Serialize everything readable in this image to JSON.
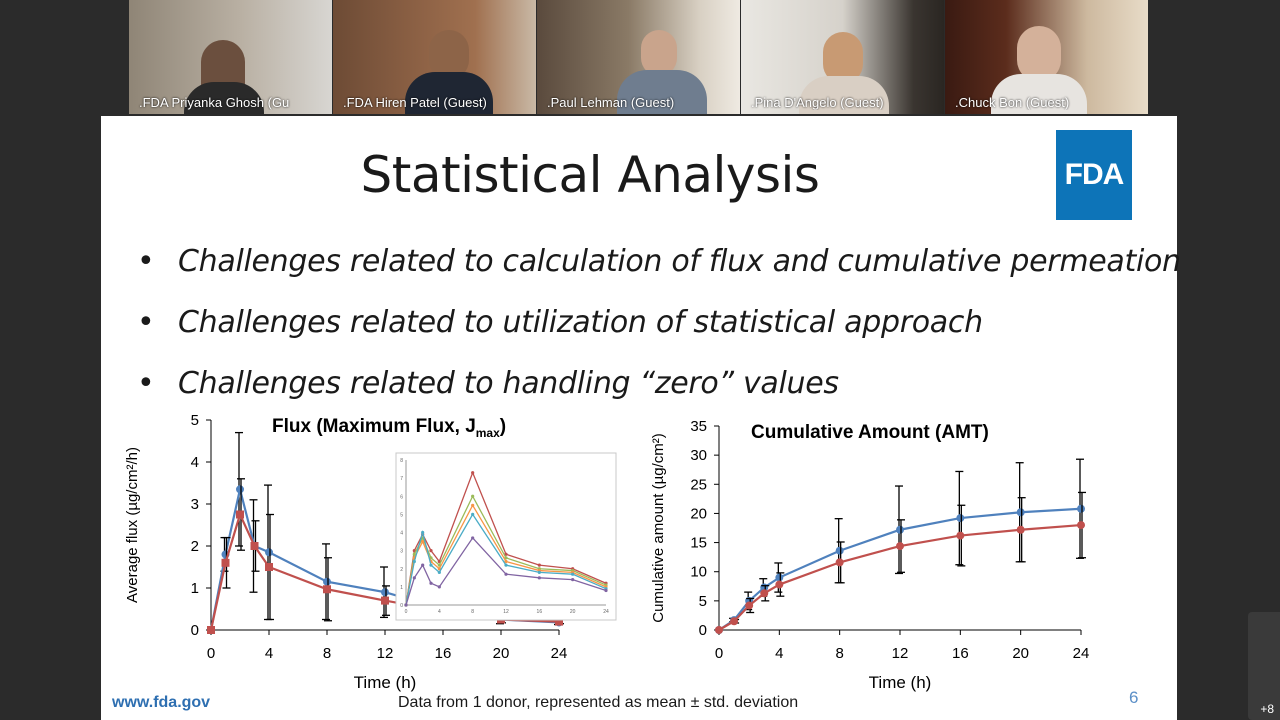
{
  "participants": [
    {
      "name": ".FDA Priyanka Ghosh (Gu"
    },
    {
      "name": ".FDA Hiren Patel (Guest)"
    },
    {
      "name": ".Paul Lehman (Guest)"
    },
    {
      "name": ".Pina D'Angelo (Guest)"
    },
    {
      "name": ".Chuck Bon (Guest)"
    }
  ],
  "more_participants": "+8",
  "slide": {
    "title": "Statistical Analysis",
    "logo_text": "FDA",
    "bullets": [
      "Challenges related to calculation of flux and cumulative permeation",
      "Challenges related to utilization of statistical approach",
      "Challenges related to handling “zero” values"
    ],
    "footer_url": "www.fda.gov",
    "footer_note": "Data from 1 donor, represented as mean ± std. deviation",
    "page_number": "6"
  },
  "colors": {
    "series_blue": "#4f81bd",
    "series_red": "#c0504d",
    "fda_blue": "#0d74b8"
  },
  "chart_data": [
    {
      "type": "line",
      "title": "Flux (Maximum Flux, J",
      "title_sub": "max",
      "title_close": ")",
      "xlabel": "Time (h)",
      "ylabel": "Average flux (µg/cm²/h)",
      "xlim": [
        0,
        24
      ],
      "ylim": [
        0,
        5
      ],
      "xticks": [
        0,
        4,
        8,
        12,
        16,
        20,
        24
      ],
      "yticks": [
        0,
        1,
        2,
        3,
        4,
        5
      ],
      "x": [
        0,
        1,
        2,
        3,
        4,
        8,
        12,
        16,
        20,
        24
      ],
      "series": [
        {
          "color": "#4f81bd",
          "marker": "circle",
          "values": [
            0,
            1.8,
            3.35,
            2.0,
            1.85,
            1.15,
            0.9,
            0.5,
            0.25,
            0.18
          ],
          "err": [
            0,
            0.4,
            1.35,
            1.1,
            1.6,
            0.9,
            0.6,
            0.25,
            0.1,
            0.05
          ]
        },
        {
          "color": "#c0504d",
          "marker": "square",
          "values": [
            0,
            1.6,
            2.75,
            2.0,
            1.5,
            0.97,
            0.7,
            0.45,
            0.25,
            0.2
          ],
          "err": [
            0,
            0.6,
            0.85,
            0.6,
            1.25,
            0.75,
            0.35,
            0.2,
            0.08,
            0.05
          ]
        }
      ],
      "inset": {
        "xticks": [
          0,
          4,
          8,
          12,
          16,
          20,
          24
        ],
        "yticks": [
          0,
          1,
          2,
          3,
          4,
          5,
          6,
          7,
          8
        ],
        "ylim": [
          0,
          8
        ],
        "x": [
          0,
          1,
          2,
          3,
          4,
          8,
          12,
          16,
          20,
          24
        ],
        "series": [
          {
            "color": "#c0504d",
            "values": [
              0,
              3.0,
              3.9,
              3.0,
              2.4,
              7.3,
              2.8,
              2.2,
              2.0,
              1.2
            ]
          },
          {
            "color": "#9bbb59",
            "values": [
              0,
              2.8,
              3.7,
              2.6,
              2.2,
              6.0,
              2.6,
              2.0,
              1.9,
              1.1
            ]
          },
          {
            "color": "#f79646",
            "values": [
              0,
              2.6,
              3.5,
              2.4,
              2.0,
              5.5,
              2.4,
              1.9,
              1.8,
              1.0
            ]
          },
          {
            "color": "#4bacc6",
            "values": [
              0,
              2.4,
              4.0,
              2.2,
              1.8,
              5.0,
              2.2,
              1.8,
              1.7,
              0.9
            ]
          },
          {
            "color": "#8064a2",
            "values": [
              0,
              1.5,
              2.2,
              1.2,
              1.0,
              3.7,
              1.7,
              1.5,
              1.4,
              0.8
            ]
          }
        ]
      }
    },
    {
      "type": "line",
      "title": "Cumulative Amount (AMT)",
      "xlabel": "Time (h)",
      "ylabel": "Cumulative amount (µg/cm²)",
      "xlim": [
        0,
        24
      ],
      "ylim": [
        0,
        35
      ],
      "xticks": [
        0,
        4,
        8,
        12,
        16,
        20,
        24
      ],
      "yticks": [
        0,
        5,
        10,
        15,
        20,
        25,
        30,
        35
      ],
      "x": [
        0,
        1,
        2,
        3,
        4,
        8,
        12,
        16,
        20,
        24
      ],
      "series": [
        {
          "color": "#4f81bd",
          "marker": "circle",
          "values": [
            0,
            1.7,
            5.0,
            7.3,
            9.0,
            13.6,
            17.2,
            19.2,
            20.2,
            20.8
          ],
          "err": [
            0,
            0.3,
            1.5,
            1.5,
            2.5,
            5.5,
            7.5,
            8.0,
            8.5,
            8.5
          ]
        },
        {
          "color": "#c0504d",
          "marker": "circle",
          "values": [
            0,
            1.5,
            4.2,
            6.3,
            7.8,
            11.6,
            14.4,
            16.2,
            17.2,
            18.0
          ],
          "err": [
            0,
            0.3,
            1.2,
            1.3,
            2.0,
            3.5,
            4.5,
            5.2,
            5.5,
            5.6
          ]
        }
      ]
    }
  ]
}
